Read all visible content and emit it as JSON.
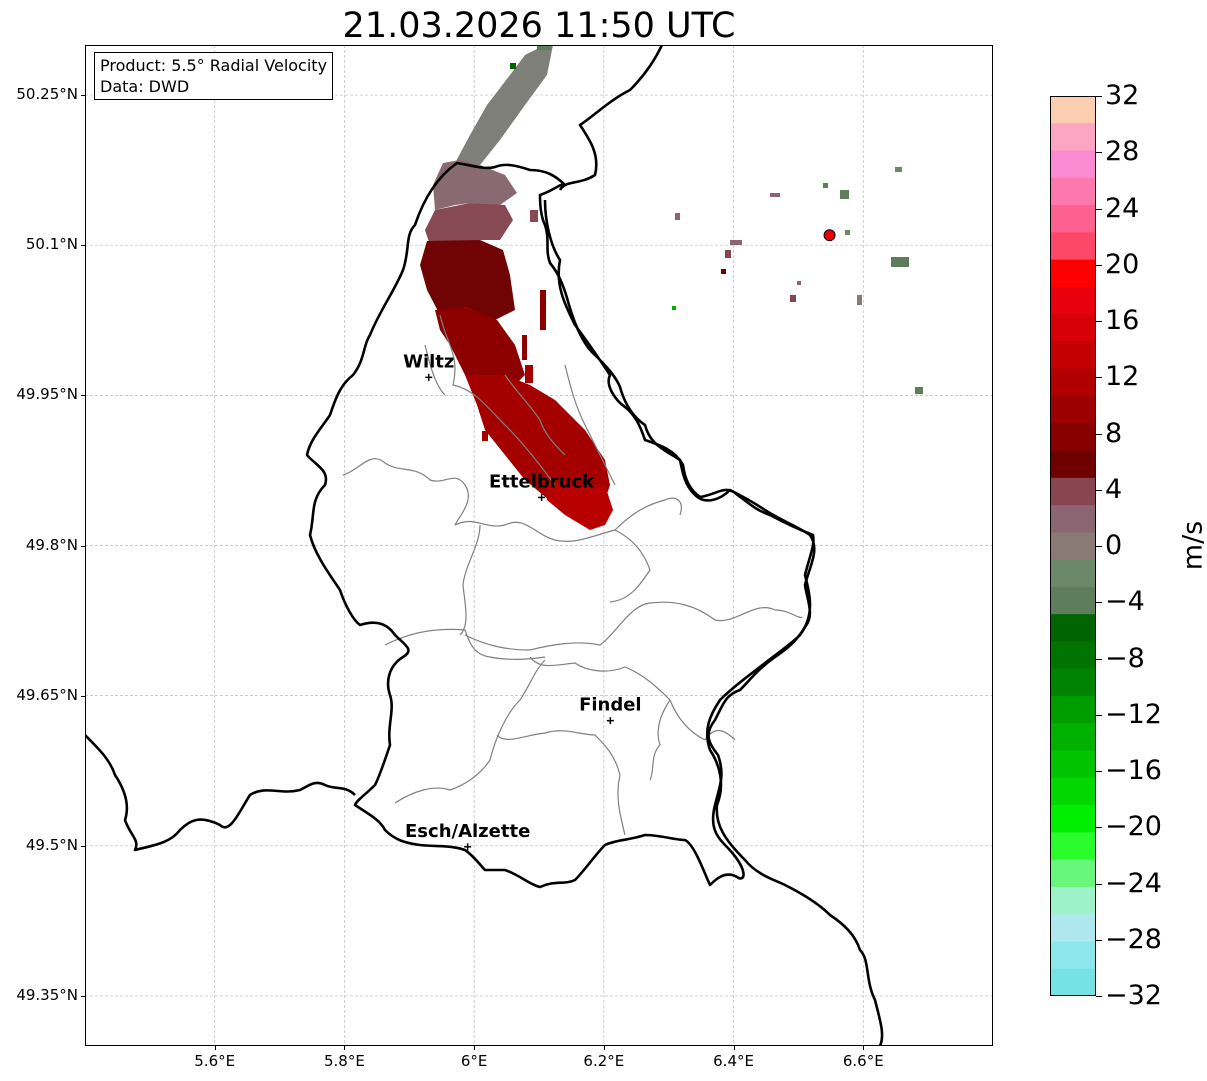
{
  "title": "21.03.2026 11:50 UTC",
  "info_box": {
    "product_line": "Product: 5.5° Radial Velocity",
    "data_line": "Data: DWD"
  },
  "map": {
    "lon_range": [
      5.4,
      6.8
    ],
    "lat_range": [
      49.3,
      50.3
    ],
    "lon_ticks": [
      {
        "value": 5.6,
        "label": "5.6°E"
      },
      {
        "value": 5.8,
        "label": "5.8°E"
      },
      {
        "value": 6.0,
        "label": "6°E"
      },
      {
        "value": 6.2,
        "label": "6.2°E"
      },
      {
        "value": 6.4,
        "label": "6.4°E"
      },
      {
        "value": 6.6,
        "label": "6.6°E"
      }
    ],
    "lat_ticks": [
      {
        "value": 50.25,
        "label": "50.25°N"
      },
      {
        "value": 50.1,
        "label": "50.1°N"
      },
      {
        "value": 49.95,
        "label": "49.95°N"
      },
      {
        "value": 49.8,
        "label": "49.8°N"
      },
      {
        "value": 49.65,
        "label": "49.65°N"
      },
      {
        "value": 49.5,
        "label": "49.5°N"
      },
      {
        "value": 49.35,
        "label": "49.35°N"
      }
    ],
    "cities": [
      {
        "name": "Wiltz",
        "lon": 5.93,
        "lat": 49.968
      },
      {
        "name": "Ettelbruck",
        "lon": 6.104,
        "lat": 49.848
      },
      {
        "name": "Findel",
        "lon": 6.21,
        "lat": 49.625
      },
      {
        "name": "Esch/Alzette",
        "lon": 5.99,
        "lat": 49.499
      }
    ],
    "radar_site": {
      "lon": 6.548,
      "lat": 50.11,
      "color": "#e8000b"
    }
  },
  "colorbar": {
    "unit": "m/s",
    "min": -32,
    "max": 32,
    "tick_labels": [
      "32",
      "28",
      "24",
      "20",
      "16",
      "12",
      "8",
      "4",
      "0",
      "−4",
      "−8",
      "−12",
      "−16",
      "−20",
      "−24",
      "−28",
      "−32"
    ],
    "colors_top_to_bottom": [
      "#fdcdb0",
      "#fca6c4",
      "#fb8ad2",
      "#fd78ad",
      "#fd6190",
      "#fd4769",
      "#ff0000",
      "#e8000c",
      "#d60006",
      "#c40002",
      "#b10000",
      "#9c0000",
      "#880000",
      "#6f0000",
      "#874550",
      "#8b6672",
      "#8a7a76",
      "#6b8869",
      "#5e7d5b",
      "#006400",
      "#007300",
      "#008400",
      "#009d00",
      "#00b100",
      "#00c400",
      "#00d800",
      "#00ee00",
      "#2bfc2b",
      "#66f77b",
      "#9df2c8",
      "#aee8ee",
      "#8ce7ec",
      "#75e2e6"
    ]
  }
}
